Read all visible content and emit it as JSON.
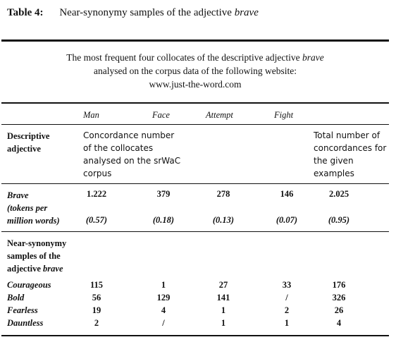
{
  "caption": {
    "label": "Table 4:",
    "text": "Near-synonymy samples of the adjective ",
    "italic": "brave"
  },
  "heading": {
    "line1_pre": "The most frequent four collocates of the descriptive adjective ",
    "line1_italic": "brave",
    "line2": "analysed on the corpus data of the following website:",
    "line3": "www.just-the-word.com"
  },
  "columns": [
    "Man",
    "Face",
    "Attempt",
    "Fight"
  ],
  "header_row": {
    "label_line1": "Descriptive",
    "label_line2": "adjective",
    "concordance_note": "Concordance number of the collocates analysed on the srWaC corpus",
    "total_note": "Total number of concordances for the given examples"
  },
  "brave_row": {
    "word": "Brave",
    "sub1": "(tokens per",
    "sub2": "million words)",
    "counts": [
      "1.222",
      "379",
      "278",
      "146",
      "2.025"
    ],
    "per_million": [
      "(0.57)",
      "(0.18)",
      "(0.13)",
      "(0.07)",
      "(0.95)"
    ]
  },
  "near_syn_label": {
    "line1": "Near-synonymy",
    "line2": "samples of the",
    "line3_pre": "adjective ",
    "line3_italic": "brave"
  },
  "synonyms": [
    {
      "word": "Courageous",
      "values": [
        "115",
        "1",
        "27",
        "33",
        "176"
      ]
    },
    {
      "word": "Bold",
      "values": [
        "56",
        "129",
        "141",
        "/",
        "326"
      ]
    },
    {
      "word": "Fearless",
      "values": [
        "19",
        "4",
        "1",
        "2",
        "26"
      ]
    },
    {
      "word": "Dauntless",
      "values": [
        "2",
        "/",
        "1",
        "1",
        "4"
      ]
    }
  ]
}
